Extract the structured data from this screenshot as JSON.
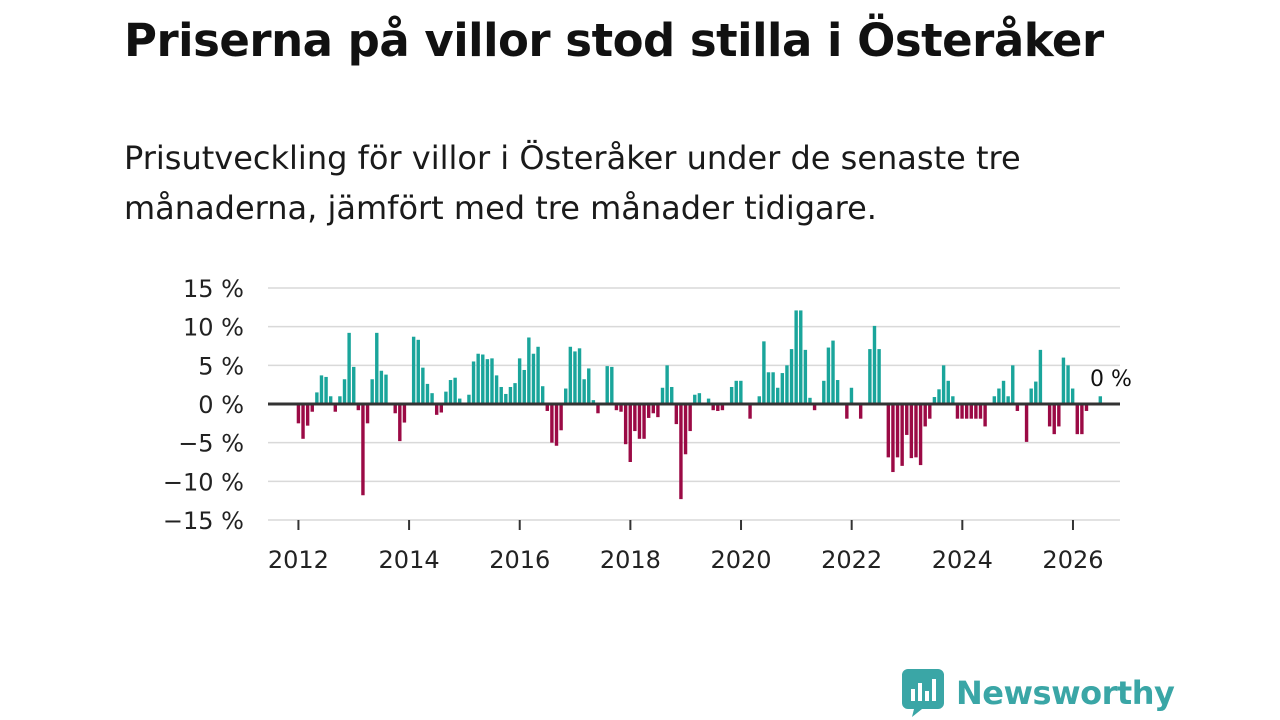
{
  "header": {
    "title": "Priserna på villor stod stilla i Österåker",
    "subtitle": "Prisutveckling för villor i Österåker under de senaste tre månaderna, jämfört med tre månader tidigare."
  },
  "brand": {
    "name": "Newsworthy",
    "icon": "newsworthy-logo-icon",
    "color": "#3aa6a6"
  },
  "colors": {
    "positive": "#1aa59b",
    "negative": "#9b0a45",
    "zero_line": "#333333",
    "grid": "#d9d9d9"
  },
  "chart_data": {
    "type": "bar",
    "title": "Priserna på villor stod stilla i Österåker",
    "xlabel": "",
    "ylabel": "",
    "ylim": [
      -15,
      15
    ],
    "xlim": [
      2011.45,
      2026.85
    ],
    "yticks": [
      15,
      10,
      5,
      0,
      -5,
      -10,
      -15
    ],
    "ytick_labels": [
      "15 %",
      "10 %",
      "5 %",
      "0 %",
      "−5 %",
      "−10 %",
      "−15 %"
    ],
    "xticks": [
      2012,
      2014,
      2016,
      2018,
      2020,
      2022,
      2024,
      2026
    ],
    "xtick_labels": [
      "2012",
      "2014",
      "2016",
      "2018",
      "2020",
      "2022",
      "2024",
      "2026"
    ],
    "grid": true,
    "start": 2012.0,
    "step": 0.0833,
    "end_label": "0 %",
    "values": [
      -2.5,
      -4.5,
      -2.8,
      -1.0,
      1.5,
      3.7,
      3.5,
      1.0,
      -1.0,
      1.0,
      3.2,
      9.2,
      4.8,
      -0.8,
      -11.8,
      -2.5,
      3.2,
      9.2,
      4.3,
      3.8,
      0,
      -1.2,
      -4.8,
      -2.4,
      0,
      8.7,
      8.3,
      4.7,
      2.6,
      1.4,
      -1.4,
      -1.1,
      1.6,
      3.1,
      3.4,
      0.7,
      0,
      1.2,
      5.5,
      6.5,
      6.4,
      5.8,
      5.9,
      3.7,
      2.2,
      1.3,
      2.2,
      2.7,
      5.9,
      4.4,
      8.6,
      6.5,
      7.4,
      2.3,
      -0.9,
      -5.0,
      -5.4,
      -3.4,
      2.0,
      7.4,
      6.8,
      7.2,
      3.2,
      4.6,
      0.5,
      -1.2,
      0,
      4.9,
      4.8,
      -0.8,
      -1.0,
      -5.2,
      -7.5,
      -3.5,
      -4.5,
      -4.5,
      -1.8,
      -1.2,
      -1.7,
      2.1,
      5.0,
      2.2,
      -2.6,
      -12.3,
      -6.5,
      -3.5,
      1.2,
      1.4,
      0,
      0.7,
      -0.8,
      -0.9,
      -0.8,
      0,
      2.2,
      3.0,
      3.0,
      0,
      -1.9,
      0,
      1.0,
      8.1,
      4.1,
      4.1,
      2.1,
      4.0,
      5.0,
      7.1,
      12.1,
      12.1,
      7.0,
      0.8,
      -0.8,
      0,
      3.0,
      7.3,
      8.2,
      3.1,
      0,
      -1.9,
      2.1,
      0,
      -1.9,
      0,
      7.1,
      10.1,
      7.1,
      0,
      -6.9,
      -8.8,
      -6.9,
      -8.0,
      -4.0,
      -7.0,
      -6.9,
      -7.9,
      -2.9,
      -1.9,
      0.9,
      1.9,
      5.0,
      3.0,
      1.0,
      -1.9,
      -1.9,
      -1.9,
      -1.9,
      -1.9,
      -1.9,
      -2.9,
      0,
      1.0,
      2.0,
      3.0,
      1.0,
      5.0,
      -0.9,
      0,
      -4.9,
      2.0,
      2.9,
      7.0,
      0,
      -2.9,
      -3.9,
      -2.9,
      6.0,
      5.0,
      2.0,
      -3.9,
      -3.9,
      -0.9,
      0,
      0,
      1.0,
      0
    ]
  }
}
